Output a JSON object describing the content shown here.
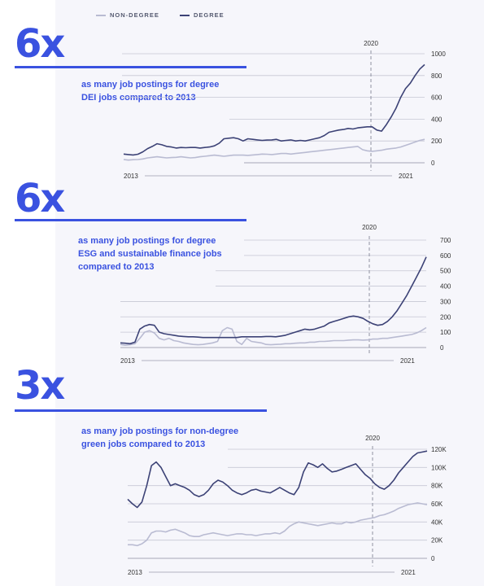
{
  "legend": {
    "non_degree": "NON-DEGREE",
    "degree": "DEGREE",
    "non_degree_color": "#b9bbd2",
    "degree_color": "#3c4276"
  },
  "panels": [
    {
      "multiplier": "6x",
      "desc_line1": "as many job postings for degree",
      "desc_line2": "DEI jobs compared to 2013"
    },
    {
      "multiplier": "6x",
      "desc_line1": "as many job postings for degree",
      "desc_line2": "ESG and sustainable finance jobs",
      "desc_line3": "compared to 2013"
    },
    {
      "multiplier": "3x",
      "desc_line1": "as many job postings for non-degree",
      "desc_line2": "green jobs compared to 2013"
    }
  ],
  "chart_data": [
    {
      "type": "line",
      "title": "",
      "xlabel": "",
      "ylabel": "",
      "x_start_label": "2013",
      "x_end_label": "2021",
      "marker_label": "2020",
      "ylim": [
        0,
        1000
      ],
      "yticks": [
        0,
        200,
        400,
        600,
        800,
        1000
      ],
      "ytick_labels": [
        "0",
        "200",
        "400",
        "600",
        "800",
        "1000"
      ],
      "grid": "horizontal",
      "series": [
        {
          "name": "NON-DEGREE",
          "values": [
            30,
            25,
            28,
            30,
            35,
            45,
            50,
            55,
            50,
            45,
            48,
            50,
            55,
            50,
            45,
            48,
            55,
            60,
            65,
            70,
            65,
            60,
            65,
            70,
            70,
            70,
            68,
            72,
            75,
            80,
            78,
            75,
            80,
            85,
            85,
            80,
            85,
            90,
            95,
            100,
            105,
            110,
            115,
            120,
            125,
            130,
            135,
            140,
            145,
            150,
            120,
            110,
            105,
            110,
            115,
            125,
            130,
            135,
            145,
            160,
            175,
            190,
            205,
            215
          ]
        },
        {
          "name": "DEGREE",
          "values": [
            80,
            75,
            72,
            78,
            100,
            130,
            150,
            175,
            165,
            150,
            145,
            135,
            140,
            138,
            140,
            140,
            135,
            140,
            145,
            155,
            180,
            220,
            225,
            230,
            220,
            200,
            220,
            215,
            210,
            205,
            208,
            210,
            215,
            200,
            205,
            210,
            200,
            205,
            200,
            210,
            220,
            230,
            250,
            280,
            290,
            300,
            305,
            315,
            310,
            320,
            325,
            330,
            330,
            300,
            290,
            350,
            420,
            500,
            600,
            680,
            730,
            800,
            860,
            900
          ]
        }
      ]
    },
    {
      "type": "line",
      "title": "",
      "xlabel": "",
      "ylabel": "",
      "x_start_label": "2013",
      "x_end_label": "2021",
      "marker_label": "2020",
      "ylim": [
        0,
        700
      ],
      "yticks": [
        0,
        100,
        200,
        300,
        400,
        500,
        600,
        700
      ],
      "ytick_labels": [
        "0",
        "100",
        "200",
        "300",
        "400",
        "500",
        "600",
        "700"
      ],
      "grid": "horizontal",
      "series": [
        {
          "name": "NON-DEGREE",
          "values": [
            20,
            15,
            18,
            25,
            60,
            100,
            110,
            95,
            60,
            50,
            60,
            45,
            40,
            30,
            25,
            20,
            18,
            20,
            25,
            30,
            40,
            110,
            130,
            120,
            40,
            20,
            60,
            40,
            35,
            30,
            20,
            18,
            20,
            22,
            25,
            25,
            28,
            30,
            30,
            35,
            35,
            40,
            40,
            42,
            45,
            45,
            45,
            48,
            50,
            50,
            48,
            50,
            55,
            55,
            60,
            60,
            65,
            70,
            75,
            80,
            85,
            95,
            110,
            130
          ]
        },
        {
          "name": "DEGREE",
          "values": [
            30,
            28,
            25,
            35,
            120,
            140,
            150,
            145,
            100,
            90,
            85,
            80,
            75,
            72,
            70,
            70,
            68,
            65,
            65,
            65,
            65,
            65,
            65,
            65,
            65,
            70,
            70,
            70,
            70,
            70,
            72,
            72,
            70,
            75,
            80,
            90,
            100,
            110,
            120,
            115,
            120,
            130,
            140,
            160,
            170,
            180,
            190,
            200,
            205,
            200,
            190,
            170,
            155,
            145,
            150,
            170,
            200,
            240,
            290,
            340,
            400,
            460,
            520,
            590
          ]
        }
      ]
    },
    {
      "type": "line",
      "title": "",
      "xlabel": "",
      "ylabel": "",
      "x_start_label": "2013",
      "x_end_label": "2021",
      "marker_label": "2020",
      "ylim": [
        0,
        120000
      ],
      "yticks": [
        0,
        20000,
        40000,
        60000,
        80000,
        100000,
        120000
      ],
      "ytick_labels": [
        "0",
        "20K",
        "40K",
        "60K",
        "80K",
        "100K",
        "120K"
      ],
      "grid": "horizontal",
      "series": [
        {
          "name": "NON-DEGREE",
          "values": [
            15000,
            15000,
            14000,
            16000,
            20000,
            28000,
            30000,
            30000,
            29000,
            31000,
            32000,
            30000,
            28000,
            25000,
            24000,
            24000,
            26000,
            27000,
            28000,
            27000,
            26000,
            25000,
            26000,
            27000,
            27000,
            26000,
            26000,
            25000,
            26000,
            27000,
            27000,
            28000,
            27000,
            30000,
            35000,
            38000,
            40000,
            39000,
            38000,
            37000,
            36000,
            37000,
            38000,
            39000,
            38000,
            38000,
            40000,
            39000,
            40000,
            42000,
            43000,
            44000,
            45000,
            47000,
            48000,
            50000,
            52000,
            55000,
            57000,
            59000,
            60000,
            61000,
            60000,
            59000
          ]
        },
        {
          "name": "DEGREE",
          "values": [
            65000,
            60000,
            56000,
            62000,
            80000,
            102000,
            106000,
            100000,
            90000,
            80000,
            82000,
            80000,
            78000,
            75000,
            70000,
            68000,
            70000,
            75000,
            82000,
            86000,
            84000,
            80000,
            75000,
            72000,
            70000,
            72000,
            75000,
            76000,
            74000,
            73000,
            72000,
            75000,
            78000,
            75000,
            72000,
            70000,
            78000,
            95000,
            105000,
            103000,
            100000,
            104000,
            99000,
            95000,
            96000,
            98000,
            100000,
            102000,
            104000,
            98000,
            92000,
            88000,
            82000,
            78000,
            76000,
            80000,
            86000,
            94000,
            100000,
            106000,
            112000,
            116000,
            117000,
            118000
          ]
        }
      ]
    }
  ]
}
